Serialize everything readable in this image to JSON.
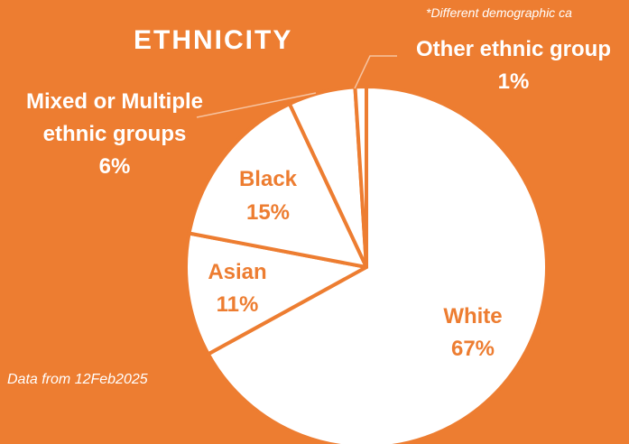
{
  "chart_data": {
    "type": "pie",
    "title": "ETHNICITY",
    "note": "*Different demographic ca",
    "source": "Data from 12Feb2025",
    "slices": [
      {
        "label": "White",
        "value": 67,
        "pct_label": "67%"
      },
      {
        "label": "Asian",
        "value": 11,
        "pct_label": "11%"
      },
      {
        "label": "Black",
        "value": 15,
        "pct_label": "15%"
      },
      {
        "label": "Mixed or Multiple ethnic groups",
        "label_lines": [
          "Mixed or Multiple",
          "ethnic groups"
        ],
        "value": 6,
        "pct_label": "6%"
      },
      {
        "label": "Other ethnic group",
        "value": 1,
        "pct_label": "1%"
      }
    ]
  },
  "colors": {
    "background": "#ED7D31",
    "slice_fill": "#FFFFFF",
    "slice_border": "#ED7D31",
    "inside_label": "#ED7D31",
    "outside_label": "#FFFFFF"
  }
}
